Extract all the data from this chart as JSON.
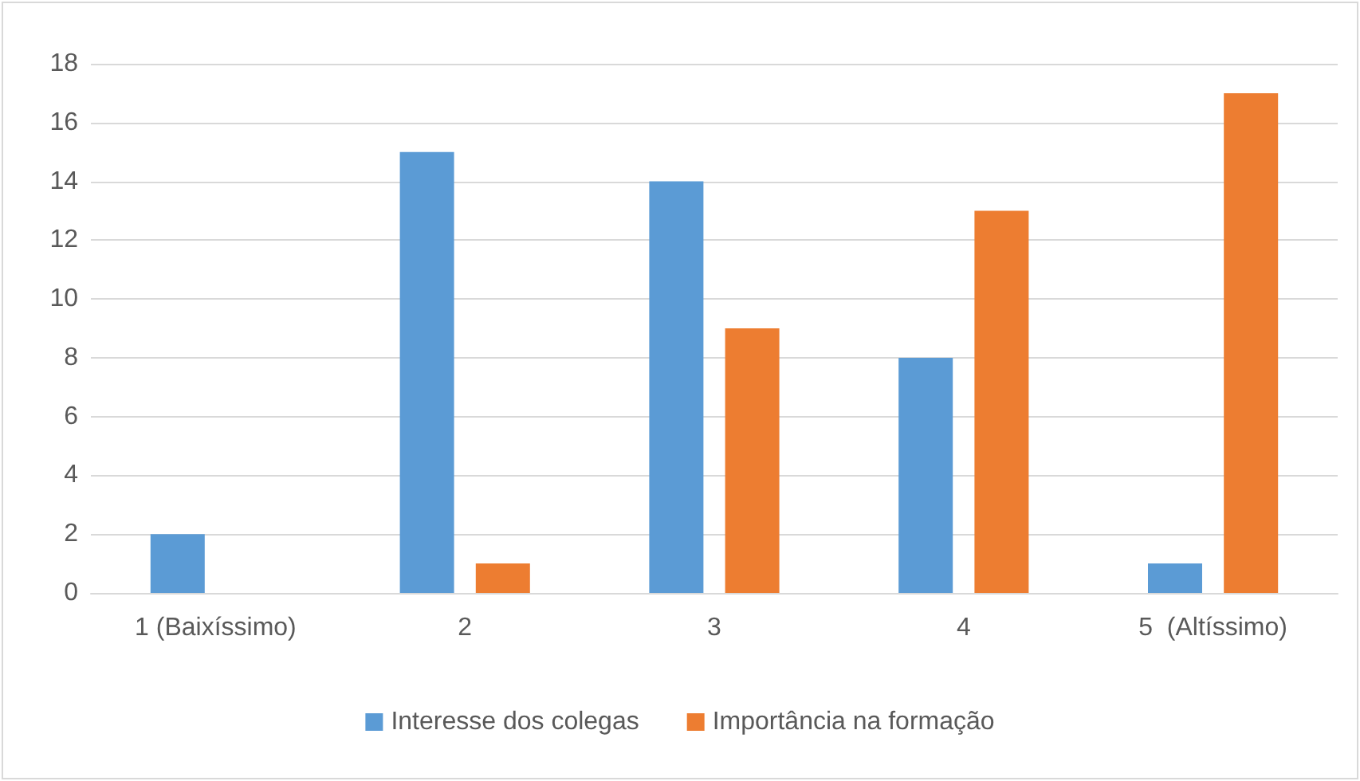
{
  "chart_data": {
    "type": "bar",
    "categories": [
      "1 (Baixíssimo)",
      "2",
      "3",
      "4",
      "5  (Altíssimo)"
    ],
    "series": [
      {
        "name": "Interesse dos colegas",
        "color": "#5b9bd5",
        "values": [
          2,
          15,
          14,
          8,
          1
        ]
      },
      {
        "name": "Importância na formação",
        "color": "#ed7d31",
        "values": [
          0,
          1,
          9,
          13,
          17
        ]
      }
    ],
    "ylim": [
      0,
      18
    ],
    "yticks": [
      0,
      2,
      4,
      6,
      8,
      10,
      12,
      14,
      16,
      18
    ],
    "grid": "y",
    "legend": "bottom"
  }
}
